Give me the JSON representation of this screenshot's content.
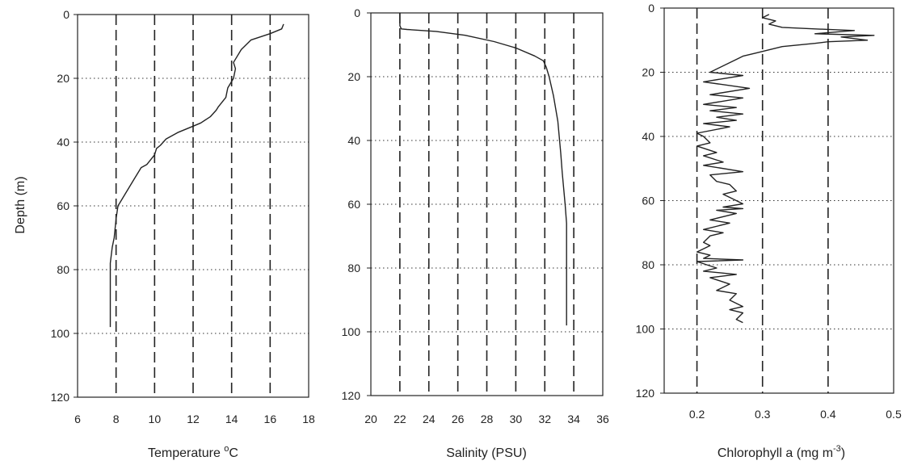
{
  "ylabel": "Depth (m)",
  "chart_data": [
    {
      "type": "line",
      "xlabel": "Temperature °C",
      "xlabel_parts": {
        "main": "Temperature ",
        "sup": "o",
        "tail": "C"
      },
      "xlim": [
        6,
        18
      ],
      "ylim": [
        0,
        120
      ],
      "y_inverted": true,
      "xticks": [
        "6",
        "8",
        "10",
        "12",
        "14",
        "16",
        "18"
      ],
      "yticks": [
        "0",
        "20",
        "40",
        "60",
        "80",
        "100",
        "120"
      ],
      "grid": {
        "vertical": "dashed",
        "horizontal": "dotted"
      },
      "series": [
        {
          "x": [
            16.7,
            16.6,
            16.0,
            15.0,
            14.5,
            14.2,
            14.1,
            14.2,
            14.1,
            13.8,
            13.7,
            13.3,
            13.2,
            12.9,
            12.4,
            12.0,
            11.2,
            10.6,
            10.3,
            10.1,
            10.0,
            9.6,
            9.3,
            9.1,
            8.9,
            8.3,
            8.1,
            8.0,
            7.9,
            7.8,
            7.7,
            7.7,
            7.7
          ],
          "y": [
            3,
            4.5,
            6,
            8,
            11,
            14,
            15,
            17,
            20,
            23,
            26,
            29,
            30,
            32,
            34,
            35,
            37,
            39,
            41,
            42,
            44,
            47,
            48,
            50,
            52,
            58,
            60,
            64,
            70,
            73,
            78,
            90,
            98
          ]
        }
      ]
    },
    {
      "type": "line",
      "xlabel": "Salinity (PSU)",
      "xlim": [
        20,
        36
      ],
      "ylim": [
        0,
        120
      ],
      "y_inverted": true,
      "xticks": [
        "20",
        "22",
        "24",
        "26",
        "28",
        "30",
        "32",
        "34",
        "36"
      ],
      "yticks": [
        "0",
        "20",
        "40",
        "60",
        "80",
        "100",
        "120"
      ],
      "grid": {
        "vertical": "dashed",
        "horizontal": "dotted"
      },
      "series": [
        {
          "x": [
            22.0,
            22.0,
            22.0,
            22.1,
            22.5,
            24.5,
            26.5,
            28.5,
            30.0,
            31.3,
            31.9,
            32.1,
            32.3,
            32.6,
            32.9,
            33.1,
            33.2,
            33.3,
            33.4,
            33.5,
            33.5,
            33.5,
            33.5
          ],
          "y": [
            0,
            2,
            4,
            5,
            5.2,
            5.8,
            7,
            9,
            11,
            13.5,
            15,
            17,
            20,
            26,
            34,
            44,
            50,
            55,
            60,
            66,
            75,
            90,
            98
          ]
        }
      ]
    },
    {
      "type": "line",
      "xlabel": "Chlorophyll a (mg m-3)",
      "xlabel_parts": {
        "main": "Chlorophyll a (mg m",
        "sup": "-3",
        "tail": ")"
      },
      "xlim": [
        0.15,
        0.5
      ],
      "ylim": [
        0,
        120
      ],
      "y_inverted": true,
      "xticks": [
        "0.2",
        "0.3",
        "0.4",
        "0.5"
      ],
      "yticks": [
        "0",
        "20",
        "40",
        "60",
        "80",
        "100",
        "120"
      ],
      "grid": {
        "vertical": "dashed",
        "horizontal": "dotted"
      },
      "series": [
        {
          "x": [
            0.31,
            0.3,
            0.32,
            0.31,
            0.33,
            0.38,
            0.44,
            0.38,
            0.47,
            0.42,
            0.46,
            0.4,
            0.38,
            0.33,
            0.29,
            0.27,
            0.26,
            0.22,
            0.27,
            0.21,
            0.28,
            0.22,
            0.27,
            0.21,
            0.26,
            0.22,
            0.27,
            0.23,
            0.26,
            0.21,
            0.25,
            0.2,
            0.21,
            0.22,
            0.2,
            0.23,
            0.21,
            0.24,
            0.21,
            0.27,
            0.22,
            0.23,
            0.25,
            0.26,
            0.24,
            0.25,
            0.27,
            0.24,
            0.27,
            0.23,
            0.26,
            0.22,
            0.25,
            0.21,
            0.24,
            0.22,
            0.21,
            0.22,
            0.2,
            0.22,
            0.21,
            0.27,
            0.2,
            0.23,
            0.21,
            0.26,
            0.22,
            0.25,
            0.23,
            0.26,
            0.25,
            0.27,
            0.25,
            0.27,
            0.26,
            0.27
          ],
          "y": [
            2,
            3,
            4,
            5,
            6,
            6.5,
            7,
            8,
            8.5,
            9,
            10,
            10.5,
            11,
            12,
            14,
            15,
            16,
            20,
            21,
            23,
            25,
            27,
            28,
            30,
            31,
            32,
            33,
            34,
            35,
            36,
            37,
            39,
            40,
            42,
            43,
            45,
            46,
            48,
            49,
            51,
            52,
            54,
            55,
            57,
            58,
            59,
            61,
            62,
            62.5,
            63,
            64,
            66,
            67,
            69,
            70,
            71,
            73,
            74,
            76,
            77,
            78,
            78.5,
            79,
            81,
            82,
            83,
            84,
            86,
            88,
            89,
            91,
            93,
            94,
            95,
            97,
            98
          ]
        }
      ]
    }
  ]
}
